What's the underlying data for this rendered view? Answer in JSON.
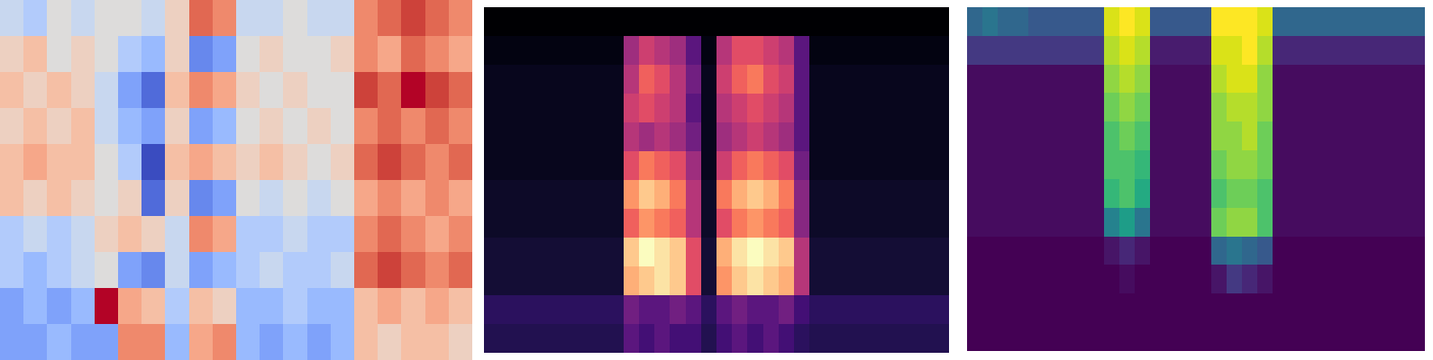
{
  "chart_data": [
    {
      "type": "heatmap",
      "color": "coolwarm",
      "tick_labels": false,
      "cells": [
        [
          0.45,
          0.4,
          0.5,
          0.45,
          0.5,
          0.5,
          0.45,
          0.55,
          0.75,
          0.7,
          0.45,
          0.45,
          0.5,
          0.45,
          0.45,
          0.7,
          0.75,
          0.8,
          0.75,
          0.7
        ],
        [
          0.55,
          0.6,
          0.5,
          0.55,
          0.5,
          0.4,
          0.35,
          0.55,
          0.25,
          0.3,
          0.5,
          0.55,
          0.5,
          0.5,
          0.55,
          0.7,
          0.65,
          0.75,
          0.7,
          0.65
        ],
        [
          0.6,
          0.55,
          0.6,
          0.55,
          0.45,
          0.3,
          0.2,
          0.6,
          0.7,
          0.65,
          0.55,
          0.5,
          0.55,
          0.5,
          0.5,
          0.8,
          0.75,
          0.85,
          0.8,
          0.75
        ],
        [
          0.55,
          0.6,
          0.55,
          0.6,
          0.45,
          0.35,
          0.3,
          0.55,
          0.3,
          0.35,
          0.5,
          0.55,
          0.5,
          0.55,
          0.5,
          0.7,
          0.75,
          0.7,
          0.75,
          0.7
        ],
        [
          0.6,
          0.65,
          0.6,
          0.6,
          0.5,
          0.4,
          0.15,
          0.6,
          0.65,
          0.6,
          0.55,
          0.6,
          0.55,
          0.5,
          0.55,
          0.75,
          0.8,
          0.75,
          0.7,
          0.75
        ],
        [
          0.6,
          0.55,
          0.6,
          0.55,
          0.5,
          0.55,
          0.2,
          0.55,
          0.25,
          0.3,
          0.5,
          0.45,
          0.5,
          0.45,
          0.5,
          0.65,
          0.7,
          0.65,
          0.7,
          0.65
        ],
        [
          0.4,
          0.45,
          0.4,
          0.45,
          0.55,
          0.6,
          0.55,
          0.45,
          0.7,
          0.65,
          0.4,
          0.4,
          0.45,
          0.4,
          0.4,
          0.7,
          0.75,
          0.7,
          0.65,
          0.7
        ],
        [
          0.4,
          0.35,
          0.4,
          0.45,
          0.5,
          0.3,
          0.25,
          0.45,
          0.3,
          0.35,
          0.4,
          0.45,
          0.4,
          0.4,
          0.45,
          0.75,
          0.8,
          0.75,
          0.7,
          0.75
        ],
        [
          0.3,
          0.35,
          0.3,
          0.35,
          0.85,
          0.65,
          0.6,
          0.4,
          0.6,
          0.55,
          0.35,
          0.35,
          0.4,
          0.35,
          0.35,
          0.6,
          0.65,
          0.6,
          0.65,
          0.6
        ],
        [
          0.3,
          0.3,
          0.35,
          0.3,
          0.3,
          0.7,
          0.7,
          0.35,
          0.65,
          0.7,
          0.35,
          0.3,
          0.35,
          0.3,
          0.35,
          0.6,
          0.55,
          0.6,
          0.6,
          0.55
        ]
      ]
    },
    {
      "type": "heatmap",
      "color": "magma",
      "tick_labels": false,
      "cells": [
        [
          0.05,
          0.05,
          0.05,
          0.05,
          0.05,
          0.05,
          0.05,
          0.05,
          0.05,
          0.05,
          0.05,
          0.05,
          0.05,
          0.05,
          0.05,
          0.05,
          0.05,
          0.05,
          0.05,
          0.05,
          0.05,
          0.05,
          0.05,
          0.05,
          0.05,
          0.05,
          0.05,
          0.05,
          0.05,
          0.05
        ],
        [
          0.08,
          0.08,
          0.08,
          0.08,
          0.08,
          0.08,
          0.08,
          0.08,
          0.08,
          0.45,
          0.55,
          0.5,
          0.45,
          0.3,
          0.08,
          0.5,
          0.6,
          0.6,
          0.55,
          0.5,
          0.3,
          0.08,
          0.08,
          0.08,
          0.08,
          0.08,
          0.08,
          0.08,
          0.08,
          0.08
        ],
        [
          0.1,
          0.1,
          0.1,
          0.1,
          0.1,
          0.1,
          0.1,
          0.1,
          0.1,
          0.5,
          0.65,
          0.6,
          0.5,
          0.35,
          0.1,
          0.55,
          0.65,
          0.7,
          0.6,
          0.55,
          0.3,
          0.1,
          0.1,
          0.1,
          0.1,
          0.1,
          0.1,
          0.1,
          0.1,
          0.1
        ],
        [
          0.1,
          0.1,
          0.1,
          0.1,
          0.1,
          0.1,
          0.1,
          0.1,
          0.1,
          0.55,
          0.6,
          0.55,
          0.5,
          0.3,
          0.1,
          0.5,
          0.55,
          0.6,
          0.55,
          0.5,
          0.3,
          0.1,
          0.1,
          0.1,
          0.1,
          0.1,
          0.1,
          0.1,
          0.1,
          0.1
        ],
        [
          0.1,
          0.1,
          0.1,
          0.1,
          0.1,
          0.1,
          0.1,
          0.1,
          0.1,
          0.5,
          0.45,
          0.5,
          0.45,
          0.35,
          0.1,
          0.45,
          0.5,
          0.55,
          0.5,
          0.45,
          0.3,
          0.1,
          0.1,
          0.1,
          0.1,
          0.1,
          0.1,
          0.1,
          0.1,
          0.1
        ],
        [
          0.1,
          0.1,
          0.1,
          0.1,
          0.1,
          0.1,
          0.1,
          0.1,
          0.1,
          0.6,
          0.7,
          0.65,
          0.6,
          0.45,
          0.1,
          0.55,
          0.65,
          0.7,
          0.65,
          0.6,
          0.35,
          0.1,
          0.1,
          0.1,
          0.1,
          0.1,
          0.1,
          0.1,
          0.1,
          0.1
        ],
        [
          0.12,
          0.12,
          0.12,
          0.12,
          0.12,
          0.12,
          0.12,
          0.12,
          0.12,
          0.75,
          0.85,
          0.8,
          0.7,
          0.5,
          0.12,
          0.7,
          0.8,
          0.85,
          0.8,
          0.7,
          0.4,
          0.12,
          0.12,
          0.12,
          0.12,
          0.12,
          0.12,
          0.12,
          0.12,
          0.12
        ],
        [
          0.12,
          0.12,
          0.12,
          0.12,
          0.12,
          0.12,
          0.12,
          0.12,
          0.12,
          0.65,
          0.75,
          0.7,
          0.65,
          0.5,
          0.12,
          0.6,
          0.7,
          0.75,
          0.7,
          0.65,
          0.4,
          0.12,
          0.12,
          0.12,
          0.12,
          0.12,
          0.12,
          0.12,
          0.12,
          0.12
        ],
        [
          0.14,
          0.14,
          0.14,
          0.14,
          0.14,
          0.14,
          0.14,
          0.14,
          0.14,
          0.85,
          0.95,
          0.9,
          0.85,
          0.6,
          0.14,
          0.8,
          0.9,
          0.95,
          0.9,
          0.85,
          0.5,
          0.14,
          0.14,
          0.14,
          0.14,
          0.14,
          0.14,
          0.14,
          0.14,
          0.14
        ],
        [
          0.14,
          0.14,
          0.14,
          0.14,
          0.14,
          0.14,
          0.14,
          0.14,
          0.14,
          0.8,
          0.85,
          0.9,
          0.85,
          0.6,
          0.14,
          0.75,
          0.85,
          0.9,
          0.85,
          0.8,
          0.5,
          0.14,
          0.14,
          0.14,
          0.14,
          0.14,
          0.14,
          0.14,
          0.14,
          0.14
        ],
        [
          0.2,
          0.2,
          0.2,
          0.2,
          0.2,
          0.2,
          0.2,
          0.2,
          0.2,
          0.35,
          0.3,
          0.3,
          0.35,
          0.3,
          0.2,
          0.3,
          0.35,
          0.3,
          0.3,
          0.35,
          0.25,
          0.2,
          0.2,
          0.2,
          0.2,
          0.2,
          0.2,
          0.2,
          0.2,
          0.2
        ],
        [
          0.18,
          0.18,
          0.18,
          0.18,
          0.18,
          0.18,
          0.18,
          0.18,
          0.18,
          0.3,
          0.25,
          0.3,
          0.25,
          0.25,
          0.18,
          0.25,
          0.3,
          0.25,
          0.3,
          0.25,
          0.2,
          0.18,
          0.18,
          0.18,
          0.18,
          0.18,
          0.18,
          0.18,
          0.18,
          0.18
        ]
      ]
    },
    {
      "type": "heatmap",
      "color": "viridis",
      "tick_labels": false,
      "cells": [
        [
          0.35,
          0.4,
          0.35,
          0.35,
          0.3,
          0.3,
          0.3,
          0.3,
          0.3,
          0.9,
          0.95,
          0.9,
          0.3,
          0.3,
          0.3,
          0.3,
          0.95,
          0.95,
          0.95,
          0.9,
          0.35,
          0.35,
          0.35,
          0.35,
          0.35,
          0.35,
          0.35,
          0.35,
          0.35,
          0.35
        ],
        [
          0.2,
          0.2,
          0.2,
          0.2,
          0.2,
          0.2,
          0.2,
          0.2,
          0.2,
          0.85,
          0.9,
          0.85,
          0.12,
          0.12,
          0.12,
          0.12,
          0.9,
          0.9,
          0.95,
          0.85,
          0.15,
          0.15,
          0.15,
          0.15,
          0.15,
          0.15,
          0.15,
          0.15,
          0.15,
          0.15
        ],
        [
          0.08,
          0.08,
          0.08,
          0.08,
          0.08,
          0.08,
          0.08,
          0.08,
          0.08,
          0.8,
          0.85,
          0.8,
          0.08,
          0.08,
          0.08,
          0.08,
          0.85,
          0.9,
          0.9,
          0.8,
          0.08,
          0.08,
          0.08,
          0.08,
          0.08,
          0.08,
          0.08,
          0.08,
          0.08,
          0.08
        ],
        [
          0.08,
          0.08,
          0.08,
          0.08,
          0.08,
          0.08,
          0.08,
          0.08,
          0.08,
          0.75,
          0.8,
          0.75,
          0.08,
          0.08,
          0.08,
          0.08,
          0.8,
          0.85,
          0.85,
          0.8,
          0.08,
          0.08,
          0.08,
          0.08,
          0.08,
          0.08,
          0.08,
          0.08,
          0.08,
          0.08
        ],
        [
          0.08,
          0.08,
          0.08,
          0.08,
          0.08,
          0.08,
          0.08,
          0.08,
          0.08,
          0.7,
          0.75,
          0.7,
          0.08,
          0.08,
          0.08,
          0.08,
          0.8,
          0.8,
          0.85,
          0.75,
          0.08,
          0.08,
          0.08,
          0.08,
          0.08,
          0.08,
          0.08,
          0.08,
          0.08,
          0.08
        ],
        [
          0.08,
          0.08,
          0.08,
          0.08,
          0.08,
          0.08,
          0.08,
          0.08,
          0.08,
          0.7,
          0.7,
          0.65,
          0.08,
          0.08,
          0.08,
          0.08,
          0.75,
          0.8,
          0.8,
          0.75,
          0.08,
          0.08,
          0.08,
          0.08,
          0.08,
          0.08,
          0.08,
          0.08,
          0.08,
          0.08
        ],
        [
          0.08,
          0.08,
          0.08,
          0.08,
          0.08,
          0.08,
          0.08,
          0.08,
          0.08,
          0.65,
          0.7,
          0.6,
          0.08,
          0.08,
          0.08,
          0.08,
          0.7,
          0.75,
          0.75,
          0.7,
          0.08,
          0.08,
          0.08,
          0.08,
          0.08,
          0.08,
          0.08,
          0.08,
          0.08,
          0.08
        ],
        [
          0.08,
          0.08,
          0.08,
          0.08,
          0.08,
          0.08,
          0.08,
          0.08,
          0.08,
          0.45,
          0.55,
          0.4,
          0.08,
          0.08,
          0.08,
          0.08,
          0.75,
          0.8,
          0.8,
          0.7,
          0.08,
          0.08,
          0.08,
          0.08,
          0.08,
          0.08,
          0.08,
          0.08,
          0.08,
          0.08
        ],
        [
          0.05,
          0.05,
          0.05,
          0.05,
          0.05,
          0.05,
          0.05,
          0.05,
          0.05,
          0.1,
          0.15,
          0.1,
          0.05,
          0.05,
          0.05,
          0.05,
          0.35,
          0.4,
          0.35,
          0.3,
          0.05,
          0.05,
          0.05,
          0.05,
          0.05,
          0.05,
          0.05,
          0.05,
          0.05,
          0.05
        ],
        [
          0.05,
          0.05,
          0.05,
          0.05,
          0.05,
          0.05,
          0.05,
          0.05,
          0.05,
          0.05,
          0.08,
          0.05,
          0.05,
          0.05,
          0.05,
          0.05,
          0.1,
          0.2,
          0.15,
          0.1,
          0.05,
          0.05,
          0.05,
          0.05,
          0.05,
          0.05,
          0.05,
          0.05,
          0.05,
          0.05
        ],
        [
          0.05,
          0.05,
          0.05,
          0.05,
          0.05,
          0.05,
          0.05,
          0.05,
          0.05,
          0.05,
          0.05,
          0.05,
          0.05,
          0.05,
          0.05,
          0.05,
          0.05,
          0.05,
          0.05,
          0.05,
          0.05,
          0.05,
          0.05,
          0.05,
          0.05,
          0.05,
          0.05,
          0.05,
          0.05,
          0.05
        ],
        [
          0.05,
          0.05,
          0.05,
          0.05,
          0.05,
          0.05,
          0.05,
          0.05,
          0.05,
          0.05,
          0.05,
          0.05,
          0.05,
          0.05,
          0.05,
          0.05,
          0.05,
          0.05,
          0.05,
          0.05,
          0.05,
          0.05,
          0.05,
          0.05,
          0.05,
          0.05,
          0.05,
          0.05,
          0.05,
          0.05
        ]
      ]
    }
  ]
}
